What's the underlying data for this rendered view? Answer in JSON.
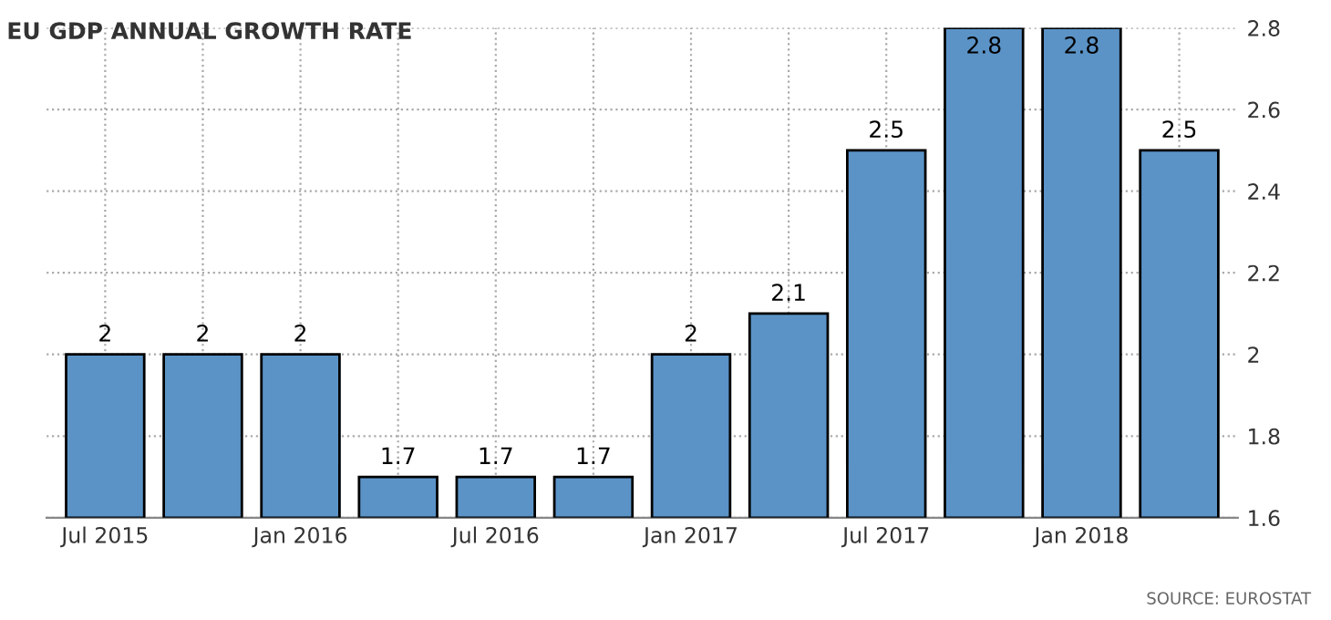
{
  "chart_data": {
    "type": "bar",
    "title": "EU GDP ANNUAL GROWTH RATE",
    "categories": [
      "Jul 2015",
      null,
      "Jan 2016",
      null,
      "Jul 2016",
      null,
      "Jan 2017",
      null,
      "Jul 2017",
      null,
      "Jan 2018",
      null
    ],
    "values": [
      2,
      2,
      2,
      1.7,
      1.7,
      1.7,
      2,
      2.1,
      2.5,
      2.8,
      2.8,
      2.5
    ],
    "color": "#5b93c7",
    "ylim": [
      1.6,
      2.8
    ],
    "yticks": [
      1.6,
      1.8,
      2,
      2.2,
      2.4,
      2.6,
      2.8
    ],
    "grid": true,
    "data_labels": true,
    "annotations": [
      "SOURCE: EUROSTAT"
    ]
  }
}
